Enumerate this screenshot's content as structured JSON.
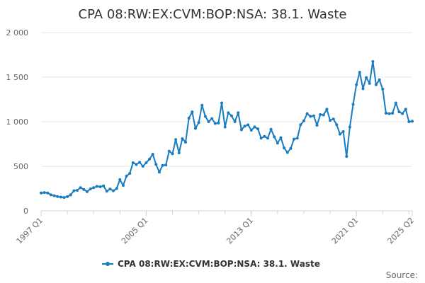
{
  "chart_data": {
    "type": "line",
    "title": "CPA 08:RW:EX:CVM:BOP:NSA: 38.1. Waste",
    "xlabel": "",
    "ylabel": "",
    "ylim": [
      0,
      2000
    ],
    "y_ticks": [
      0,
      500,
      1000,
      1500,
      2000
    ],
    "y_tick_labels": [
      "0",
      "500",
      "1 000",
      "1 500",
      "2 000"
    ],
    "x_ticks": [
      "1997 Q1",
      "2005 Q1",
      "2013 Q1",
      "2021 Q1",
      "2025 Q2"
    ],
    "grid": "horizontal",
    "legend_position": "bottom",
    "series": [
      {
        "name": "CPA 08:RW:EX:CVM:BOP:NSA: 38.1. Waste",
        "color": "#1a7cc0",
        "start": "1997 Q1",
        "frequency": "quarterly",
        "values": [
          200,
          205,
          200,
          180,
          170,
          160,
          155,
          150,
          160,
          180,
          225,
          230,
          260,
          240,
          215,
          245,
          260,
          275,
          270,
          280,
          220,
          245,
          225,
          250,
          350,
          285,
          390,
          420,
          540,
          520,
          545,
          500,
          540,
          580,
          635,
          520,
          435,
          510,
          515,
          670,
          640,
          800,
          650,
          810,
          770,
          1040,
          1110,
          925,
          990,
          1185,
          1060,
          1000,
          1035,
          980,
          985,
          1210,
          940,
          1100,
          1065,
          1000,
          1100,
          910,
          950,
          965,
          905,
          940,
          920,
          815,
          835,
          815,
          915,
          830,
          760,
          820,
          705,
          655,
          700,
          805,
          815,
          965,
          1010,
          1090,
          1060,
          1065,
          960,
          1080,
          1075,
          1140,
          1015,
          1030,
          965,
          860,
          890,
          610,
          940,
          1195,
          1415,
          1555,
          1370,
          1495,
          1430,
          1675,
          1415,
          1470,
          1365,
          1095,
          1090,
          1095,
          1210,
          1110,
          1090,
          1140,
          1000,
          1005
        ]
      }
    ]
  },
  "legend": {
    "label": "CPA 08:RW:EX:CVM:BOP:NSA: 38.1. Waste"
  },
  "footer": {
    "source_label": "Source:"
  }
}
